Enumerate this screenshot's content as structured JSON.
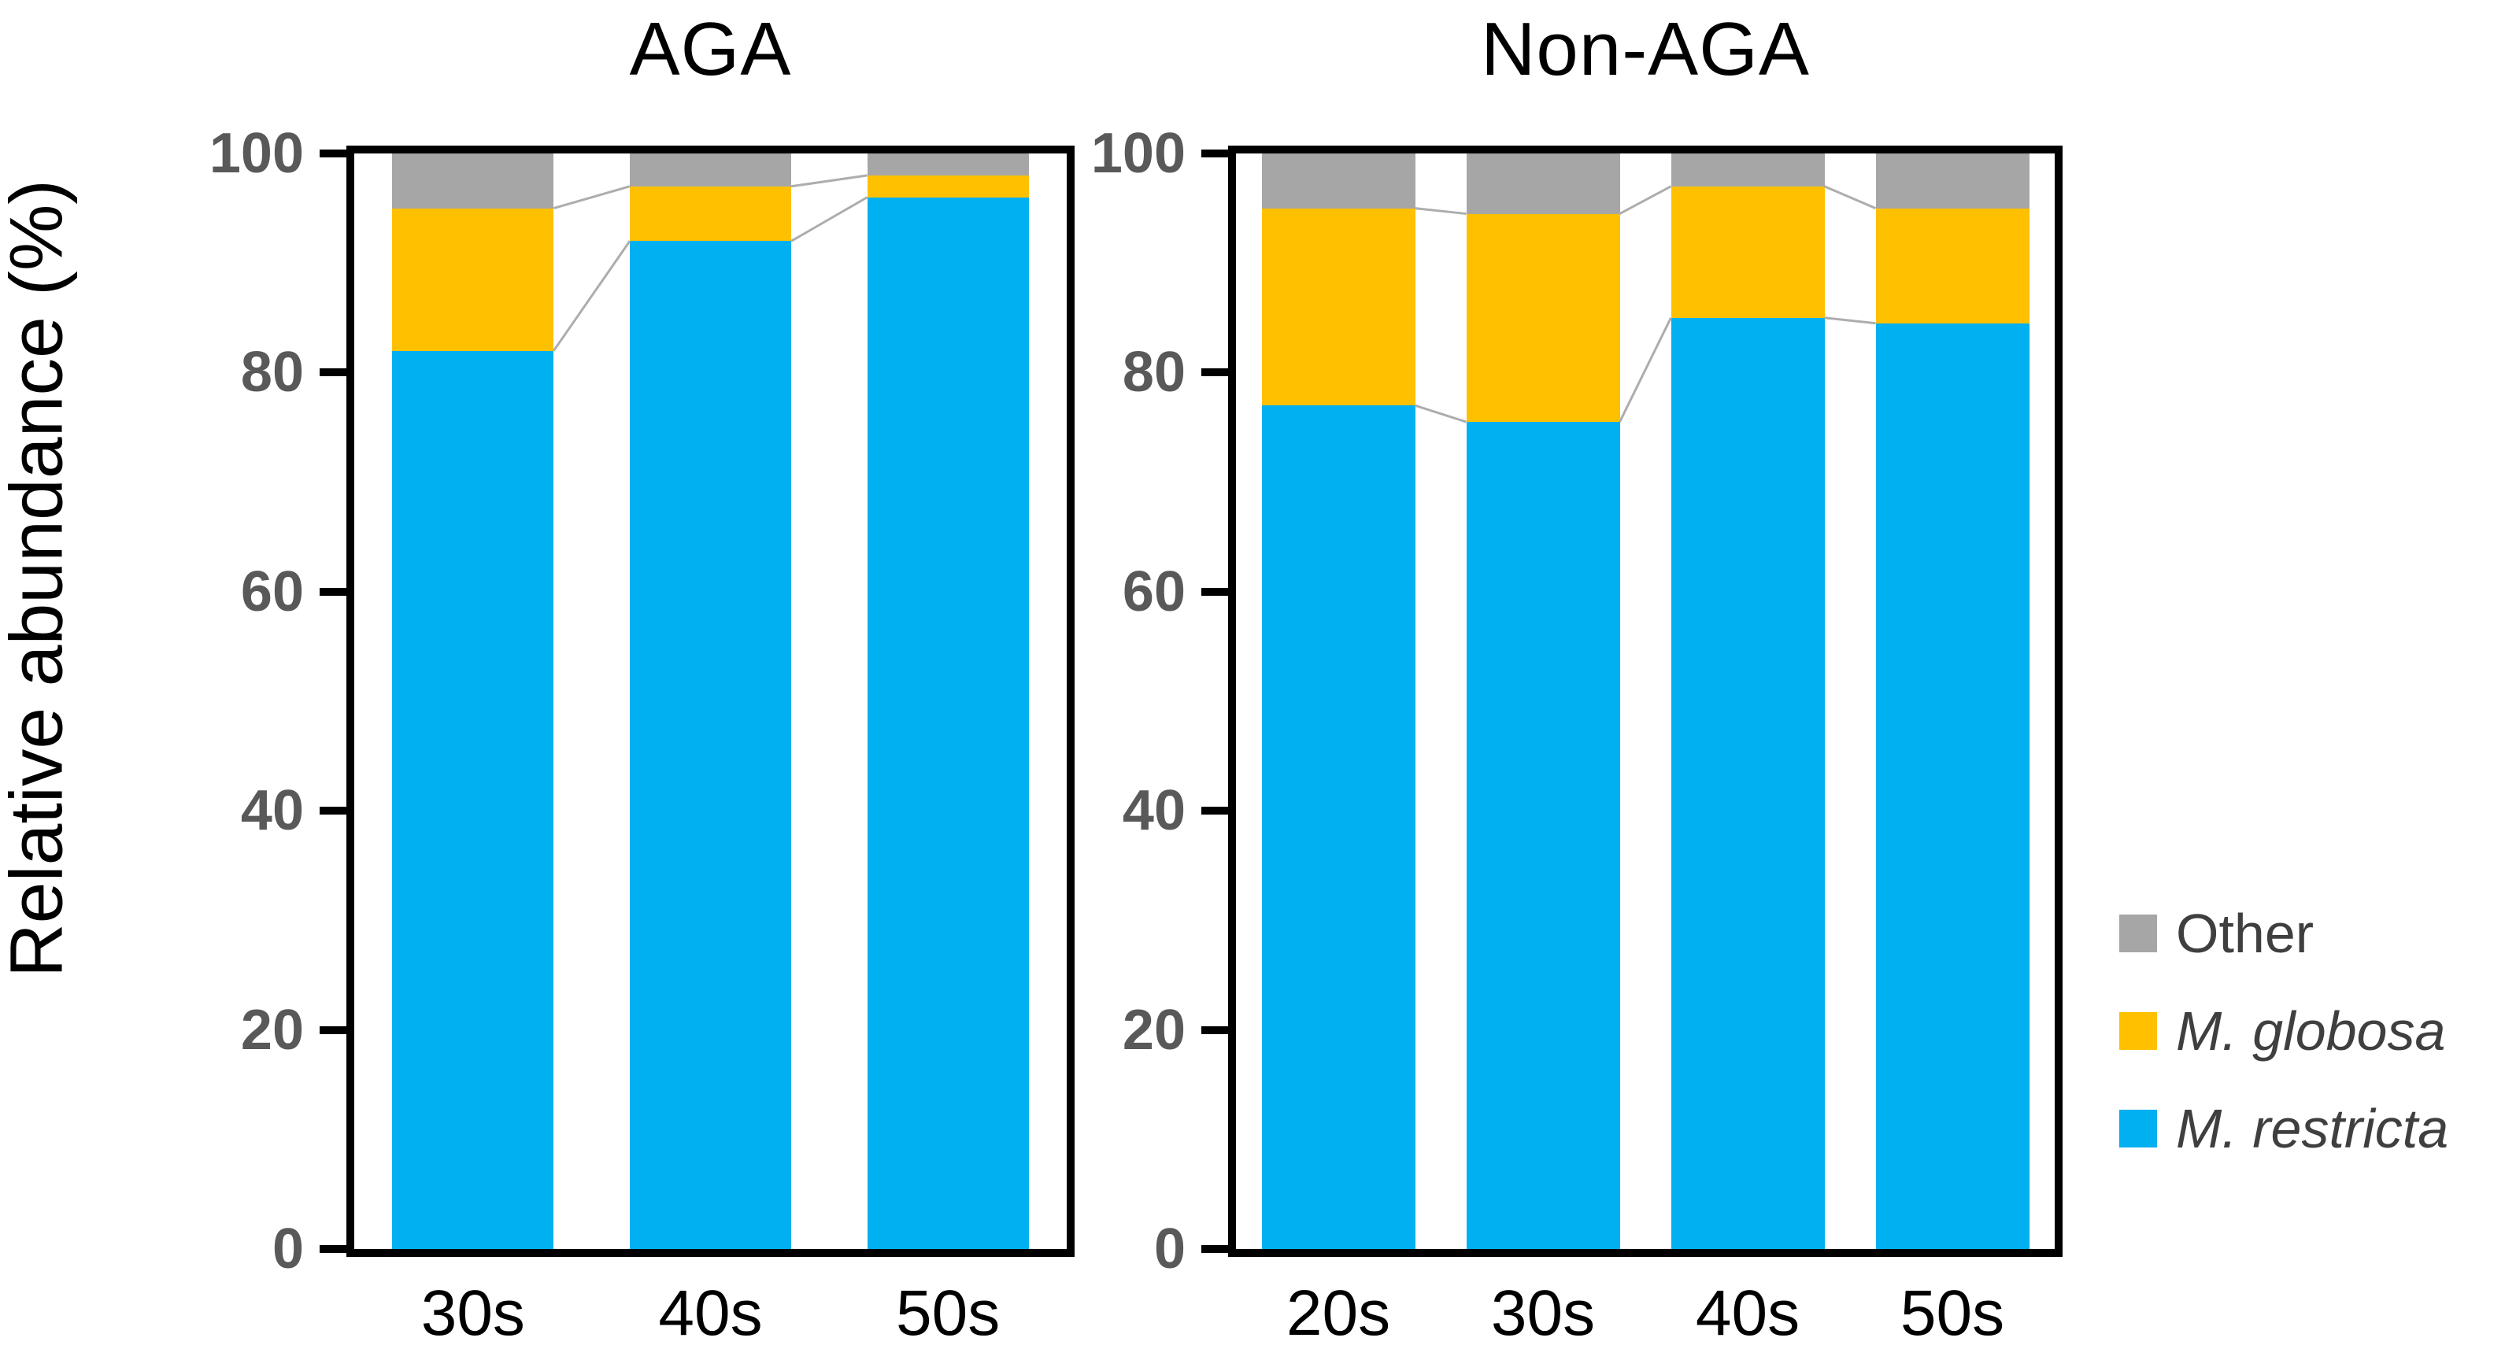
{
  "figure": {
    "y_axis_title": "Relative abundance (%)",
    "colors": {
      "restricta": "#00B0F0",
      "globosa": "#FFC000",
      "other": "#A6A6A6",
      "axis": "#000000",
      "tick_label": "#595959",
      "connector": "#ADADAD",
      "legend_text": "#3F3F3F"
    },
    "legend": [
      {
        "label": "Other",
        "color_key": "other",
        "italic": false
      },
      {
        "label": "M. globosa",
        "color_key": "globosa",
        "italic": true
      },
      {
        "label": "M. restricta",
        "color_key": "restricta",
        "italic": true
      }
    ]
  },
  "chart_data": [
    {
      "type": "bar",
      "stacked": true,
      "title": "AGA",
      "categories": [
        "30s",
        "40s",
        "50s"
      ],
      "series": [
        {
          "name": "M. restricta",
          "color_key": "restricta",
          "values": [
            82,
            92,
            96
          ]
        },
        {
          "name": "M. globosa",
          "color_key": "globosa",
          "values": [
            13,
            5,
            2
          ]
        },
        {
          "name": "Other",
          "color_key": "other",
          "values": [
            5,
            3,
            2
          ]
        }
      ],
      "xlabel": "",
      "ylabel": "Relative abundance (%)",
      "ylim": [
        0,
        100
      ],
      "yticks": [
        0,
        20,
        40,
        60,
        80,
        100
      ],
      "grid": false,
      "legend_position": "right",
      "connectors": true,
      "bar_width_frac": 0.68
    },
    {
      "type": "bar",
      "stacked": true,
      "title": "Non-AGA",
      "categories": [
        "20s",
        "30s",
        "40s",
        "50s"
      ],
      "series": [
        {
          "name": "M. restricta",
          "color_key": "restricta",
          "values": [
            77,
            75.5,
            85,
            84.5
          ]
        },
        {
          "name": "M. globosa",
          "color_key": "globosa",
          "values": [
            18,
            19,
            12,
            10.5
          ]
        },
        {
          "name": "Other",
          "color_key": "other",
          "values": [
            5,
            5.5,
            3,
            5
          ]
        }
      ],
      "xlabel": "",
      "ylabel": "Relative abundance (%)",
      "ylim": [
        0,
        100
      ],
      "yticks": [
        0,
        20,
        40,
        60,
        80,
        100
      ],
      "grid": false,
      "legend_position": "right",
      "connectors": true,
      "bar_width_frac": 0.75
    }
  ]
}
